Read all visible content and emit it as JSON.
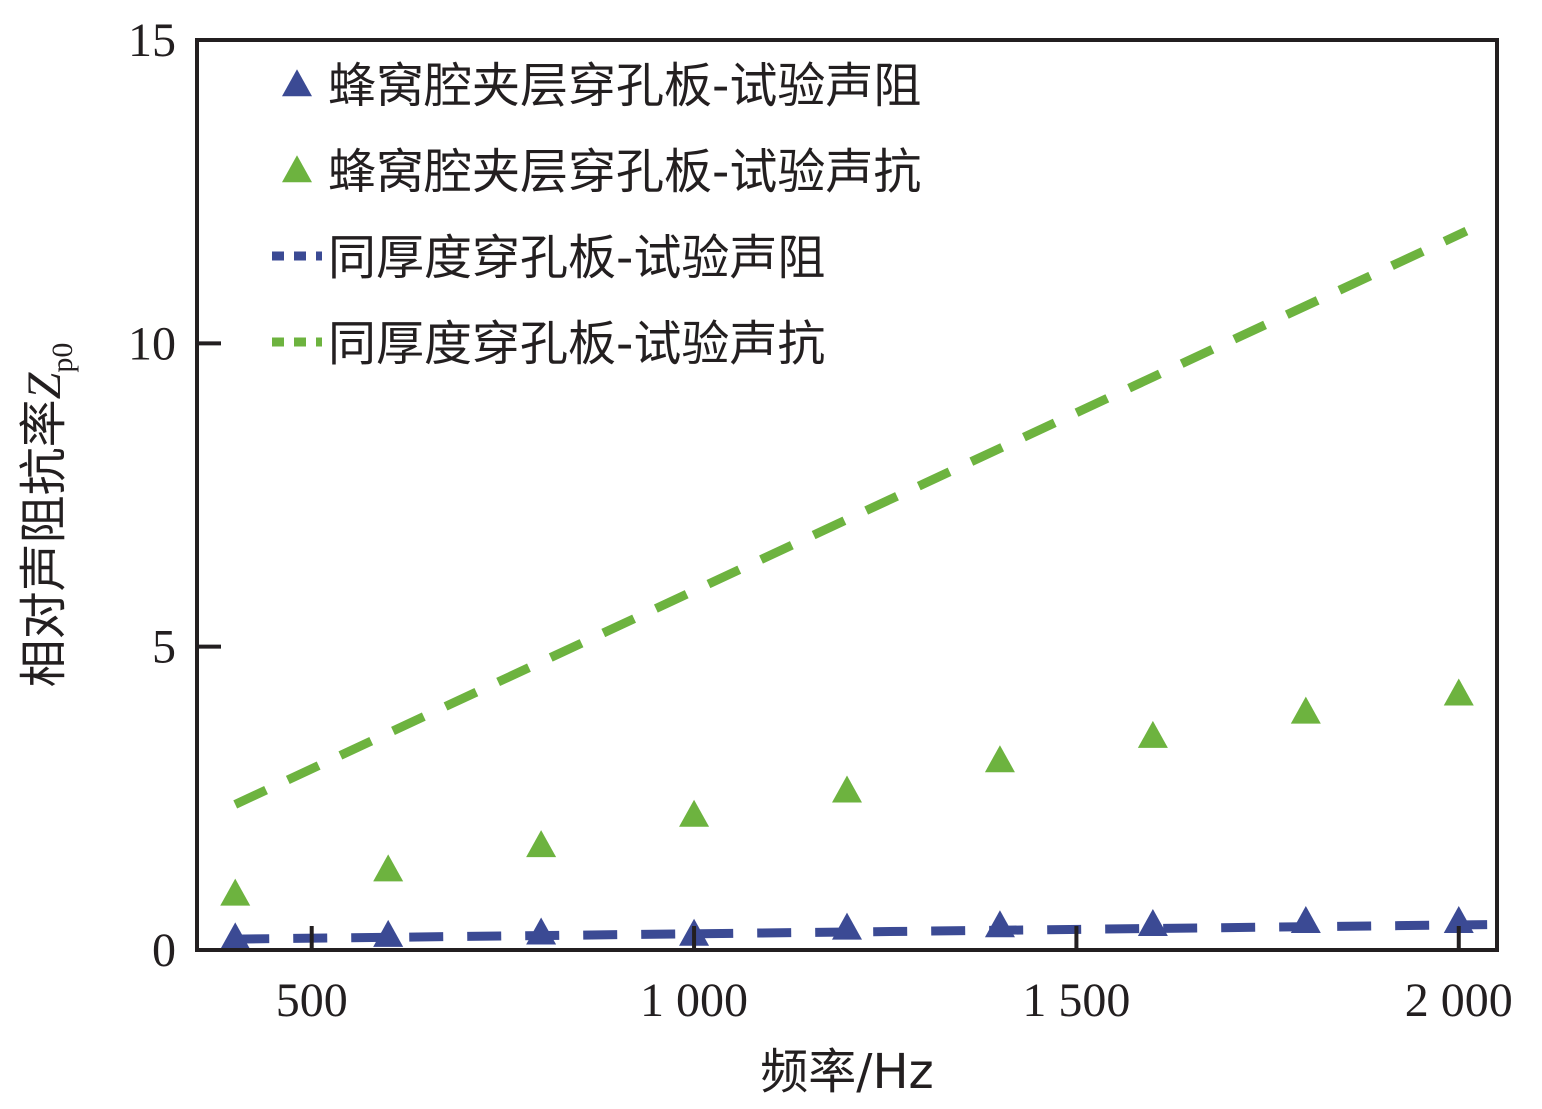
{
  "colors": {
    "blue": "#3b4a94",
    "green": "#6db33f",
    "axis": "#231f20"
  },
  "chart_data": {
    "type": "scatter",
    "xlabel": "频率/Hz",
    "ylabel": "相对声阻抗率",
    "ylabel_symbol": "Z",
    "ylabel_subscript": "p0",
    "xlim": [
      350,
      2050
    ],
    "ylim": [
      0,
      15
    ],
    "x_ticks": [
      500,
      1000,
      1500,
      2000
    ],
    "x_tick_labels": [
      "500",
      "1 000",
      "1 500",
      "2 000"
    ],
    "y_ticks": [
      0,
      5,
      10,
      15
    ],
    "y_tick_labels": [
      "0",
      "5",
      "10",
      "15"
    ],
    "grid": false,
    "legend_position": "top-left",
    "series": [
      {
        "name": "蜂窝腔夹层穿孔板-试验声阻",
        "style": "triangle",
        "color": "#3b4a94",
        "x": [
          400,
          600,
          800,
          1000,
          1200,
          1400,
          1600,
          1800,
          2000
        ],
        "y": [
          0.18,
          0.22,
          0.26,
          0.24,
          0.34,
          0.38,
          0.4,
          0.45,
          0.45
        ]
      },
      {
        "name": "蜂窝腔夹层穿孔板-试验声抗",
        "style": "triangle",
        "color": "#6db33f",
        "x": [
          400,
          600,
          800,
          1000,
          1200,
          1400,
          1600,
          1800,
          2000
        ],
        "y": [
          0.9,
          1.3,
          1.7,
          2.2,
          2.6,
          3.1,
          3.5,
          3.9,
          4.2
        ]
      },
      {
        "name": "同厚度穿孔板-试验声阻",
        "style": "dashed",
        "color": "#3b4a94",
        "x": [
          400,
          2050
        ],
        "y": [
          0.18,
          0.42
        ]
      },
      {
        "name": "同厚度穿孔板-试验声抗",
        "style": "dashed",
        "color": "#6db33f",
        "x": [
          400,
          2010
        ],
        "y": [
          2.4,
          11.85
        ]
      }
    ]
  }
}
